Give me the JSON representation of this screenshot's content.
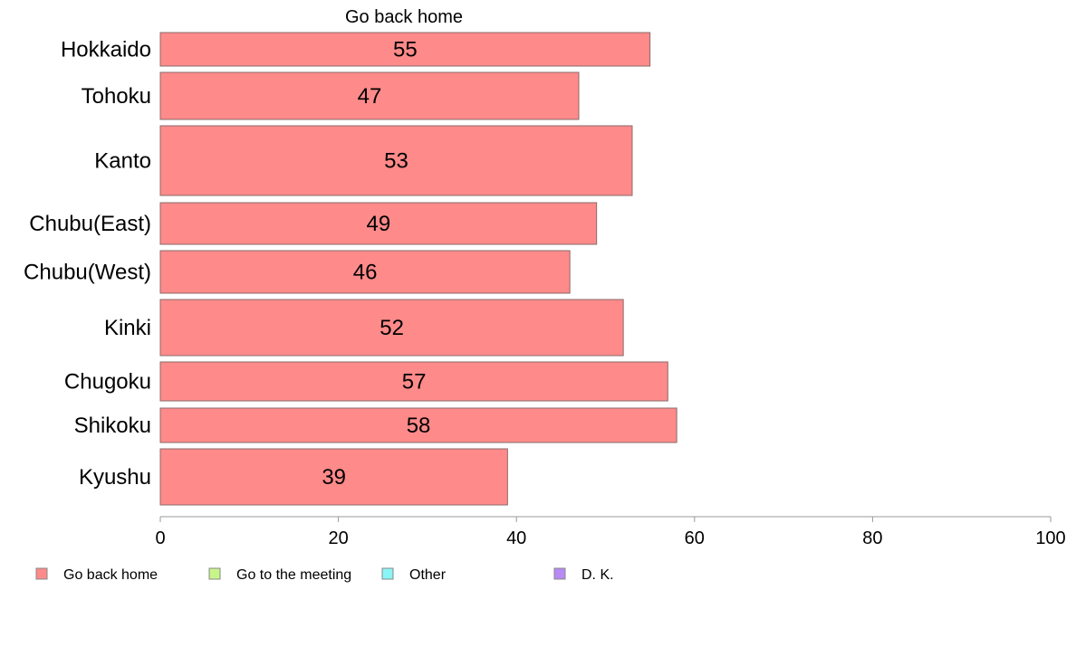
{
  "chart_data": {
    "type": "bar",
    "orientation": "horizontal",
    "title": "Go back home",
    "categories": [
      "Hokkaido",
      "Tohoku",
      "Kanto",
      "Chubu(East)",
      "Chubu(West)",
      "Kinki",
      "Chugoku",
      "Shikoku",
      "Kyushu"
    ],
    "series": [
      {
        "name": "Go back home",
        "color": "#ff8a8a",
        "values": [
          55,
          47,
          53,
          49,
          46,
          52,
          57,
          58,
          39
        ],
        "labels": [
          "55",
          "47",
          "53",
          "49",
          "46",
          "52",
          "57",
          "58",
          "39"
        ]
      }
    ],
    "xlim": [
      0,
      100
    ],
    "xticks": [
      0,
      20,
      40,
      60,
      80,
      100
    ],
    "xtick_labels": [
      "0",
      "20",
      "40",
      "60",
      "80",
      "100"
    ],
    "xlabel": "",
    "ylabel": "",
    "grid": false,
    "legend": {
      "position": "bottom-left",
      "items": [
        {
          "label": "Go back home",
          "color": "#ff8a8a"
        },
        {
          "label": "Go to the meeting",
          "color": "#c8f58a"
        },
        {
          "label": "Other",
          "color": "#8af5f5"
        },
        {
          "label": "D. K.",
          "color": "#b88af5"
        }
      ]
    }
  }
}
